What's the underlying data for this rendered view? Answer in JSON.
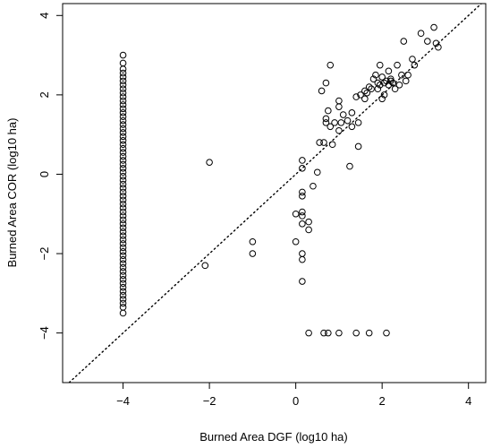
{
  "chart_data": {
    "type": "scatter",
    "title": "",
    "xlabel": "Burned Area DGF (log10 ha)",
    "ylabel": "Burned Area COR (log10 ha)",
    "xlim": [
      -5.4,
      4.4
    ],
    "ylim": [
      -5.25,
      4.3
    ],
    "xticks": [
      -4,
      -2,
      0,
      2,
      4
    ],
    "yticks": [
      -4,
      -2,
      0,
      2,
      4
    ],
    "xtick_labels": [
      "−4",
      "−2",
      "0",
      "2",
      "4"
    ],
    "ytick_labels": [
      "−4",
      "−2",
      "0",
      "2",
      "4"
    ],
    "reference_line": {
      "slope": 1,
      "intercept": 0,
      "style": "dotted"
    },
    "grid": false,
    "marker": "open-circle",
    "colors": {
      "points": "#000000",
      "axes": "#000000",
      "background": "#ffffff"
    },
    "series": [
      {
        "points": [
          [
            -4,
            3.0
          ],
          [
            -4,
            2.8
          ],
          [
            -4,
            2.65
          ],
          [
            -4,
            2.55
          ],
          [
            -4,
            2.45
          ],
          [
            -4,
            2.35
          ],
          [
            -4,
            2.25
          ],
          [
            -4,
            2.15
          ],
          [
            -4,
            2.05
          ],
          [
            -4,
            1.95
          ],
          [
            -4,
            1.85
          ],
          [
            -4,
            1.75
          ],
          [
            -4,
            1.65
          ],
          [
            -4,
            1.55
          ],
          [
            -4,
            1.45
          ],
          [
            -4,
            1.35
          ],
          [
            -4,
            1.25
          ],
          [
            -4,
            1.15
          ],
          [
            -4,
            1.05
          ],
          [
            -4,
            0.95
          ],
          [
            -4,
            0.85
          ],
          [
            -4,
            0.75
          ],
          [
            -4,
            0.65
          ],
          [
            -4,
            0.55
          ],
          [
            -4,
            0.45
          ],
          [
            -4,
            0.35
          ],
          [
            -4,
            0.25
          ],
          [
            -4,
            0.15
          ],
          [
            -4,
            0.05
          ],
          [
            -4,
            -0.05
          ],
          [
            -4,
            -0.15
          ],
          [
            -4,
            -0.25
          ],
          [
            -4,
            -0.35
          ],
          [
            -4,
            -0.45
          ],
          [
            -4,
            -0.55
          ],
          [
            -4,
            -0.65
          ],
          [
            -4,
            -0.75
          ],
          [
            -4,
            -0.85
          ],
          [
            -4,
            -0.95
          ],
          [
            -4,
            -1.05
          ],
          [
            -4,
            -1.15
          ],
          [
            -4,
            -1.25
          ],
          [
            -4,
            -1.35
          ],
          [
            -4,
            -1.45
          ],
          [
            -4,
            -1.55
          ],
          [
            -4,
            -1.65
          ],
          [
            -4,
            -1.75
          ],
          [
            -4,
            -1.85
          ],
          [
            -4,
            -1.95
          ],
          [
            -4,
            -2.05
          ],
          [
            -4,
            -2.15
          ],
          [
            -4,
            -2.25
          ],
          [
            -4,
            -2.35
          ],
          [
            -4,
            -2.45
          ],
          [
            -4,
            -2.55
          ],
          [
            -4,
            -2.65
          ],
          [
            -4,
            -2.75
          ],
          [
            -4,
            -2.85
          ],
          [
            -4,
            -2.95
          ],
          [
            -4,
            -3.05
          ],
          [
            -4,
            -3.15
          ],
          [
            -4,
            -3.25
          ],
          [
            -4,
            -3.35
          ],
          [
            -4,
            -3.5
          ],
          [
            -2.0,
            0.3
          ],
          [
            -2.1,
            -2.3
          ],
          [
            -1.0,
            -1.7
          ],
          [
            -1.0,
            -2.0
          ],
          [
            0.0,
            -1.0
          ],
          [
            0.0,
            -1.7
          ],
          [
            0.15,
            0.35
          ],
          [
            0.15,
            0.15
          ],
          [
            0.15,
            -0.45
          ],
          [
            0.15,
            -0.55
          ],
          [
            0.15,
            -0.95
          ],
          [
            0.15,
            -1.05
          ],
          [
            0.15,
            -1.25
          ],
          [
            0.15,
            -2.0
          ],
          [
            0.15,
            -2.15
          ],
          [
            0.15,
            -2.7
          ],
          [
            0.3,
            -1.2
          ],
          [
            0.3,
            -1.4
          ],
          [
            0.3,
            -4.0
          ],
          [
            0.4,
            -0.3
          ],
          [
            0.5,
            0.05
          ],
          [
            0.55,
            0.8
          ],
          [
            0.65,
            0.8
          ],
          [
            0.6,
            2.1
          ],
          [
            0.7,
            2.3
          ],
          [
            0.7,
            1.4
          ],
          [
            0.7,
            1.3
          ],
          [
            0.75,
            1.6
          ],
          [
            0.8,
            1.2
          ],
          [
            0.8,
            2.75
          ],
          [
            0.85,
            0.75
          ],
          [
            0.9,
            1.3
          ],
          [
            0.65,
            -4.0
          ],
          [
            0.75,
            -4.0
          ],
          [
            1.0,
            -4.0
          ],
          [
            1.4,
            -4.0
          ],
          [
            1.7,
            -4.0
          ],
          [
            2.1,
            -4.0
          ],
          [
            1.0,
            1.7
          ],
          [
            1.0,
            1.85
          ],
          [
            1.0,
            1.1
          ],
          [
            1.05,
            1.3
          ],
          [
            1.1,
            1.5
          ],
          [
            1.2,
            1.35
          ],
          [
            1.25,
            0.2
          ],
          [
            1.3,
            1.55
          ],
          [
            1.3,
            1.2
          ],
          [
            1.4,
            1.95
          ],
          [
            1.45,
            0.7
          ],
          [
            1.45,
            1.3
          ],
          [
            1.5,
            2.0
          ],
          [
            1.6,
            2.1
          ],
          [
            1.6,
            1.9
          ],
          [
            1.65,
            2.05
          ],
          [
            1.7,
            2.2
          ],
          [
            1.75,
            2.15
          ],
          [
            1.8,
            2.4
          ],
          [
            1.85,
            2.5
          ],
          [
            1.9,
            2.3
          ],
          [
            1.95,
            2.25
          ],
          [
            1.95,
            2.75
          ],
          [
            2.0,
            1.9
          ],
          [
            2.0,
            2.45
          ],
          [
            2.05,
            2.0
          ],
          [
            2.1,
            2.35
          ],
          [
            2.15,
            2.6
          ],
          [
            2.15,
            2.25
          ],
          [
            2.2,
            2.4
          ],
          [
            2.25,
            2.3
          ],
          [
            2.3,
            2.15
          ],
          [
            2.35,
            2.75
          ],
          [
            2.4,
            2.25
          ],
          [
            2.45,
            2.5
          ],
          [
            2.5,
            3.35
          ],
          [
            2.55,
            2.35
          ],
          [
            2.6,
            2.5
          ],
          [
            2.7,
            2.9
          ],
          [
            2.75,
            2.75
          ],
          [
            2.9,
            3.55
          ],
          [
            3.05,
            3.35
          ],
          [
            3.2,
            3.7
          ],
          [
            3.25,
            3.3
          ],
          [
            3.3,
            3.2
          ],
          [
            2.2,
            2.35
          ],
          [
            2.05,
            2.3
          ],
          [
            1.9,
            2.15
          ]
        ]
      }
    ]
  }
}
